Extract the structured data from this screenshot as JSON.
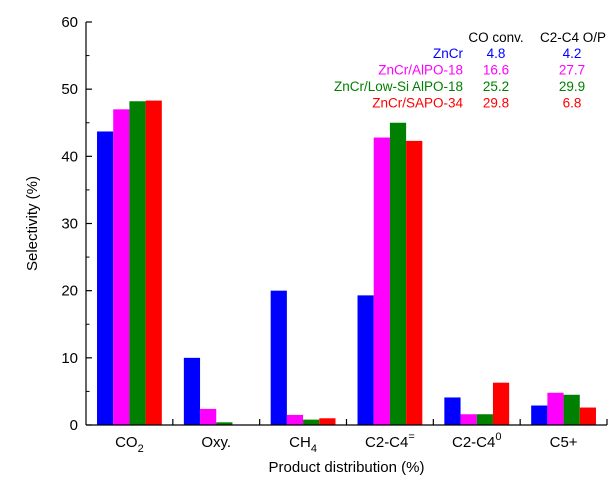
{
  "chart_data": {
    "type": "bar",
    "xlabel": "Product distribution (%)",
    "ylabel": "Selectivity (%)",
    "ylim": [
      0,
      60
    ],
    "yticks": [
      0,
      10,
      20,
      30,
      40,
      50,
      60
    ],
    "grid": false,
    "categories": [
      {
        "base": "CO",
        "sub": "2",
        "sup": ""
      },
      {
        "base": "Oxy.",
        "sub": "",
        "sup": ""
      },
      {
        "base": "CH",
        "sub": "4",
        "sup": ""
      },
      {
        "base": "C2-C4",
        "sub": "",
        "sup": "="
      },
      {
        "base": "C2-C4",
        "sub": "",
        "sup": "0"
      },
      {
        "base": "C5+",
        "sub": "",
        "sup": ""
      }
    ],
    "series": [
      {
        "name": "ZnCr",
        "color": "#0000ff",
        "values": [
          43.7,
          10.0,
          20.0,
          19.3,
          4.1,
          2.9
        ],
        "co_conv": "4.8",
        "o_p": "4.2"
      },
      {
        "name": "ZnCr/AlPO-18",
        "color": "#ff00ff",
        "values": [
          47.0,
          2.4,
          1.5,
          42.8,
          1.6,
          4.8
        ],
        "co_conv": "16.6",
        "o_p": "27.7"
      },
      {
        "name": "ZnCr/Low-Si AlPO-18",
        "color": "#008000",
        "values": [
          48.2,
          0.4,
          0.8,
          45.0,
          1.6,
          4.5
        ],
        "co_conv": "25.2",
        "o_p": "29.9"
      },
      {
        "name": "ZnCr/SAPO-34",
        "color": "#ff0000",
        "values": [
          48.3,
          0.0,
          1.0,
          42.3,
          6.3,
          2.6
        ],
        "co_conv": "29.8",
        "o_p": "6.8"
      }
    ],
    "legend": {
      "placement": "top-right",
      "header_conv": "CO conv.",
      "header_op": "C2-C4 O/P"
    }
  }
}
